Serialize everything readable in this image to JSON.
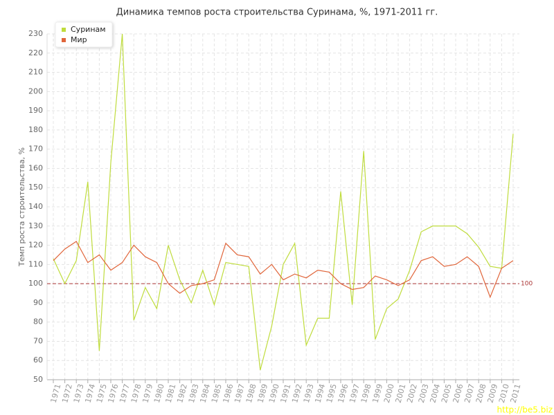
{
  "chart_data": {
    "type": "line",
    "title": "Динамика темпов роста строительства Суринама, %, 1971-2011 гг.",
    "y_label": "Темп роста строительства, %",
    "categories": [
      "1971",
      "1972",
      "1973",
      "1974",
      "1975",
      "1976",
      "1977",
      "1978",
      "1979",
      "1980",
      "1981",
      "1982",
      "1983",
      "1984",
      "1985",
      "1986",
      "1987",
      "1988",
      "1989",
      "1990",
      "1991",
      "1992",
      "1993",
      "1994",
      "1995",
      "1996",
      "1997",
      "1998",
      "1999",
      "2000",
      "2001",
      "2002",
      "2003",
      "2004",
      "2005",
      "2006",
      "2007",
      "2008",
      "2009",
      "2010",
      "2011"
    ],
    "series": [
      {
        "name": "Суринам",
        "color": "#bfdc3c",
        "values": [
          113,
          100,
          112,
          153,
          65,
          163,
          230,
          81,
          98,
          87,
          120,
          102,
          90,
          107,
          89,
          111,
          110,
          109,
          55,
          78,
          110,
          121,
          68,
          82,
          82,
          148,
          89,
          169,
          71,
          87,
          92,
          107,
          127,
          130,
          130,
          130,
          126,
          119,
          109,
          108,
          178
        ]
      },
      {
        "name": "Мир",
        "color": "#e0653a",
        "values": [
          112,
          118,
          122,
          111,
          115,
          107,
          111,
          120,
          114,
          111,
          100,
          95,
          99,
          100,
          102,
          121,
          115,
          114,
          105,
          110,
          102,
          105,
          103,
          107,
          106,
          100,
          97,
          98,
          104,
          102,
          99,
          102,
          112,
          114,
          109,
          110,
          114,
          109,
          93,
          108,
          112
        ]
      }
    ],
    "ylim": [
      50,
      230
    ],
    "yticks": [
      50,
      60,
      70,
      80,
      90,
      100,
      110,
      120,
      130,
      140,
      150,
      160,
      170,
      180,
      190,
      200,
      210,
      220,
      230
    ],
    "grid": true,
    "reference_line": {
      "value": 100,
      "label": "100",
      "color": "#a33"
    },
    "legend": "top-left",
    "watermark": "http://be5.biz"
  }
}
